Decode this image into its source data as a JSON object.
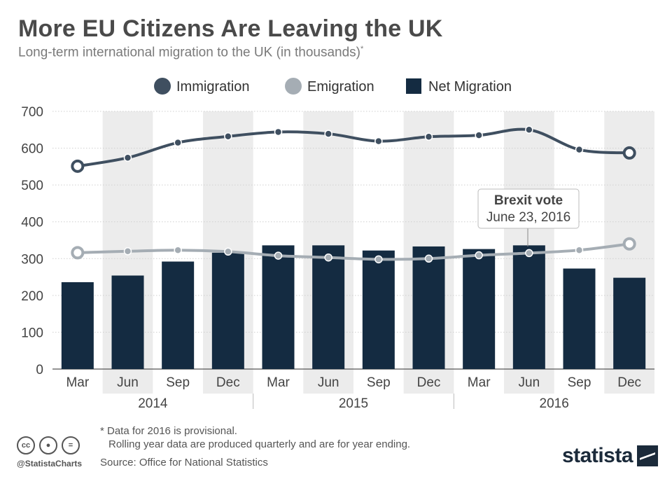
{
  "header": {
    "title": "More EU Citizens Are Leaving the UK",
    "subtitle": "Long-term international migration to the UK (in thousands)",
    "subtitle_mark": "*"
  },
  "legend": {
    "immigration": "Immigration",
    "emigration": "Emigration",
    "net": "Net Migration"
  },
  "annotation": {
    "title": "Brexit vote",
    "date": "June 23, 2016"
  },
  "footer": {
    "note_line1": "* Data for 2016 is provisional.",
    "note_line2": "Rolling year data are produced quarterly and are for year ending.",
    "source": "Source: Office for National Statistics",
    "handle": "@StatistaCharts",
    "logo": "statista"
  },
  "colors": {
    "immigration": "#3f4f60",
    "emigration": "#a5adb4",
    "net": "#142b41",
    "band": "#ececec"
  },
  "chart_data": {
    "type": "bar",
    "categories": [
      "Mar",
      "Jun",
      "Sep",
      "Dec",
      "Mar",
      "Jun",
      "Sep",
      "Dec",
      "Mar",
      "Jun",
      "Sep",
      "Dec"
    ],
    "years": [
      "2014",
      "2015",
      "2016"
    ],
    "ylim": [
      0,
      700
    ],
    "yticks": [
      0,
      100,
      200,
      300,
      400,
      500,
      600,
      700
    ],
    "grid": true,
    "legend_position": "top",
    "series": [
      {
        "name": "Net Migration",
        "kind": "bar",
        "values": [
          236,
          254,
          292,
          316,
          336,
          336,
          322,
          333,
          326,
          336,
          273,
          248
        ]
      },
      {
        "name": "Immigration",
        "kind": "line",
        "values": [
          551,
          574,
          615,
          632,
          644,
          639,
          619,
          631,
          635,
          650,
          596,
          587
        ]
      },
      {
        "name": "Emigration",
        "kind": "line",
        "values": [
          316,
          320,
          323,
          319,
          308,
          303,
          298,
          300,
          309,
          315,
          323,
          340
        ]
      }
    ]
  }
}
